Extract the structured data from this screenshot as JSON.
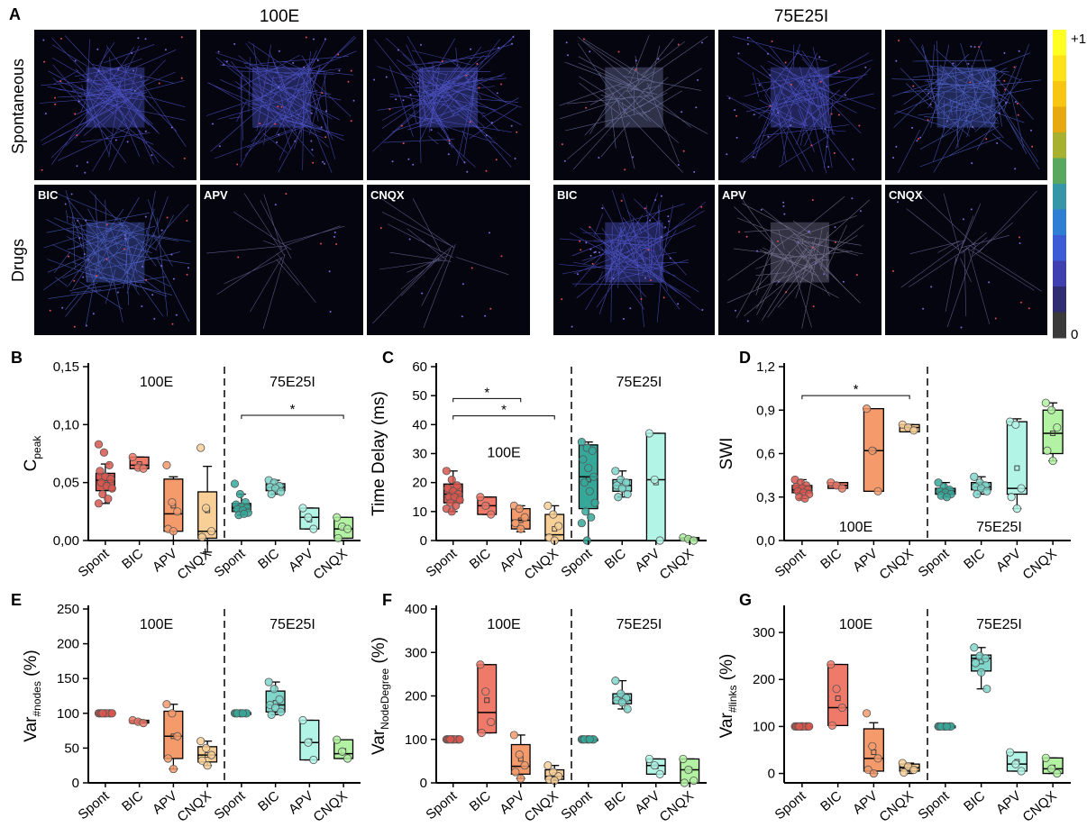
{
  "panelA": {
    "letter": "A",
    "group_titles": [
      "100E",
      "75E25I"
    ],
    "row_labels": [
      "Spontaneous",
      "Drugs"
    ],
    "drug_labels": [
      "BIC",
      "APV",
      "CNQX"
    ],
    "colorbar": {
      "max_label": "+1",
      "min_label": "0",
      "colors": [
        "#ffff22",
        "#ffe11a",
        "#f8c512",
        "#e6aa10",
        "#a8b02f",
        "#5aa85f",
        "#3596a8",
        "#2e7fd3",
        "#3c5cd6",
        "#3f3fb0",
        "#2f2c72",
        "#3a3a3a"
      ]
    },
    "thumbnails": [
      {
        "id": "sp-100E-1",
        "density": 0.9,
        "color": "#5a60e6"
      },
      {
        "id": "sp-100E-2",
        "density": 1.0,
        "color": "#5a60e6"
      },
      {
        "id": "sp-100E-3",
        "density": 1.0,
        "color": "#5a60e6"
      },
      {
        "id": "sp-75-1",
        "density": 0.5,
        "color": "#8088b8"
      },
      {
        "id": "sp-75-2",
        "density": 0.9,
        "color": "#5a60e6"
      },
      {
        "id": "sp-75-3",
        "density": 1.0,
        "color": "#5a6fe6"
      },
      {
        "id": "dr-100E-BIC",
        "density": 1.0,
        "color": "#5a70e6"
      },
      {
        "id": "dr-100E-APV",
        "density": 0.05,
        "color": "#7a7ab0"
      },
      {
        "id": "dr-100E-CNQX",
        "density": 0.05,
        "color": "#7a7ab0"
      },
      {
        "id": "dr-75-BIC",
        "density": 0.9,
        "color": "#5a60e6"
      },
      {
        "id": "dr-75-APV",
        "density": 0.6,
        "color": "#8a8aa8"
      },
      {
        "id": "dr-75-CNQX",
        "density": 0.15,
        "color": "#7a7ab0"
      }
    ]
  },
  "categories": [
    "Spont",
    "BIC",
    "APV",
    "CNQX",
    "Spont",
    "BIC",
    "APV",
    "CNQX"
  ],
  "colors": [
    "#d9574f",
    "#f07a6a",
    "#f59a6b",
    "#f8cf96",
    "#35a89a",
    "#7fd6cb",
    "#b2f5e6",
    "#b2f2a2"
  ],
  "chart_data": [
    {
      "id": "B",
      "letter": "B",
      "type": "box",
      "ylabel": "C",
      "ylabel_sub": "peak",
      "ylim": [
        0,
        0.15
      ],
      "yticks": [
        "0,00",
        "0,05",
        "0,10",
        "0,15"
      ],
      "ytick_values": [
        0,
        0.05,
        0.1,
        0.15
      ],
      "group_labels": [
        "100E",
        "75E25I"
      ],
      "boxes": [
        {
          "q1": 0.043,
          "med": 0.052,
          "q3": 0.058,
          "wlo": 0.032,
          "whi": 0.066,
          "mean": 0.05,
          "pts": [
            0.083,
            0.076,
            0.065,
            0.06,
            0.055,
            0.053,
            0.05,
            0.047,
            0.045,
            0.04,
            0.036,
            0.032
          ]
        },
        {
          "q1": 0.062,
          "med": 0.065,
          "q3": 0.072,
          "wlo": 0.062,
          "whi": 0.072,
          "mean": 0.066,
          "pts": [
            0.072,
            0.063,
            0.062
          ]
        },
        {
          "q1": 0.008,
          "med": 0.023,
          "q3": 0.053,
          "wlo": 0.0,
          "whi": 0.055,
          "mean": 0.03,
          "pts": [
            0.065,
            0.033,
            0.025,
            0.01,
            0.008
          ]
        },
        {
          "q1": 0.002,
          "med": 0.008,
          "q3": 0.042,
          "wlo": -0.01,
          "whi": 0.064,
          "mean": 0.026,
          "pts": [
            0.08,
            0.028,
            0.008,
            0.003
          ]
        },
        {
          "q1": 0.025,
          "med": 0.028,
          "q3": 0.032,
          "wlo": 0.022,
          "whi": 0.04,
          "mean": 0.029,
          "pts": [
            0.049,
            0.04,
            0.033,
            0.031,
            0.029,
            0.028,
            0.027,
            0.026,
            0.024,
            0.022,
            0.023
          ]
        },
        {
          "q1": 0.043,
          "med": 0.046,
          "q3": 0.049,
          "wlo": 0.04,
          "whi": 0.052,
          "mean": 0.046,
          "pts": [
            0.052,
            0.05,
            0.047,
            0.046,
            0.045,
            0.042,
            0.04
          ]
        },
        {
          "q1": 0.01,
          "med": 0.02,
          "q3": 0.028,
          "wlo": 0.01,
          "whi": 0.028,
          "mean": 0.018,
          "pts": [
            0.028,
            0.02,
            0.01
          ]
        },
        {
          "q1": 0.002,
          "med": 0.01,
          "q3": 0.02,
          "wlo": 0.002,
          "whi": 0.02,
          "mean": 0.011,
          "pts": [
            0.02,
            0.012,
            0.01,
            0.002
          ]
        }
      ],
      "sig": [
        {
          "from": 4,
          "to": 7,
          "y": 0.108,
          "label": "*"
        }
      ],
      "label_pos": [
        "top",
        "top"
      ]
    },
    {
      "id": "C",
      "letter": "C",
      "type": "box",
      "ylabel": "Time Delay (ms)",
      "ylabel_sub": "",
      "ylim": [
        0,
        60
      ],
      "yticks": [
        "0",
        "10",
        "20",
        "30",
        "40",
        "50",
        "60"
      ],
      "ytick_values": [
        0,
        10,
        20,
        30,
        40,
        50,
        60
      ],
      "group_labels": [
        "100E",
        "75E25I"
      ],
      "boxes": [
        {
          "q1": 13,
          "med": 16,
          "q3": 19.5,
          "wlo": 10,
          "whi": 24,
          "mean": 16,
          "pts": [
            24,
            21,
            19,
            18,
            17,
            16,
            15,
            15,
            14,
            13,
            12,
            11,
            10
          ]
        },
        {
          "q1": 9,
          "med": 12,
          "q3": 15,
          "wlo": 9,
          "whi": 15,
          "mean": 12,
          "pts": [
            15,
            12,
            9
          ]
        },
        {
          "q1": 4,
          "med": 7,
          "q3": 11,
          "wlo": 3,
          "whi": 12,
          "mean": 7,
          "pts": [
            12,
            11,
            8,
            6,
            4
          ]
        },
        {
          "q1": 0,
          "med": 2,
          "q3": 9,
          "wlo": 0,
          "whi": 12,
          "mean": 4,
          "pts": [
            12,
            9,
            5,
            1,
            0
          ]
        },
        {
          "q1": 11,
          "med": 22,
          "q3": 33,
          "wlo": 0,
          "whi": 34,
          "mean": 21,
          "pts": [
            34,
            32,
            31,
            28,
            25,
            22,
            20,
            17,
            13,
            10,
            8,
            6,
            0
          ]
        },
        {
          "q1": 17,
          "med": 19,
          "q3": 21,
          "wlo": 15,
          "whi": 24,
          "mean": 19.5,
          "pts": [
            24,
            21,
            20,
            19,
            18,
            16,
            15
          ]
        },
        {
          "q1": 0,
          "med": 21,
          "q3": 37,
          "wlo": 0,
          "whi": 37,
          "mean": 20,
          "pts": [
            37,
            21,
            0
          ]
        },
        {
          "q1": 0,
          "med": 0.5,
          "q3": 1,
          "wlo": 0,
          "whi": 1,
          "mean": 0.5,
          "pts": [
            1,
            0.5,
            0
          ]
        }
      ],
      "sig": [
        {
          "from": 0,
          "to": 2,
          "y": 49,
          "label": "*"
        },
        {
          "from": 0,
          "to": 3,
          "y": 43,
          "label": "*"
        }
      ],
      "label_pos": [
        "mid",
        "top"
      ]
    },
    {
      "id": "D",
      "letter": "D",
      "type": "box",
      "ylabel": "SWI",
      "ylabel_sub": "",
      "ylim": [
        0,
        1.2
      ],
      "yticks": [
        "0,0",
        "0,3",
        "0,6",
        "0,9",
        "1,2"
      ],
      "ytick_values": [
        0,
        0.3,
        0.6,
        0.9,
        1.2
      ],
      "group_labels": [
        "100E",
        "75E25I"
      ],
      "boxes": [
        {
          "q1": 0.33,
          "med": 0.35,
          "q3": 0.38,
          "wlo": 0.29,
          "whi": 0.42,
          "mean": 0.35,
          "pts": [
            0.42,
            0.4,
            0.38,
            0.37,
            0.36,
            0.35,
            0.34,
            0.33,
            0.32,
            0.3,
            0.29
          ]
        },
        {
          "q1": 0.36,
          "med": 0.38,
          "q3": 0.4,
          "wlo": 0.36,
          "whi": 0.4,
          "mean": 0.38,
          "pts": [
            0.4,
            0.38,
            0.36
          ]
        },
        {
          "q1": 0.34,
          "med": 0.62,
          "q3": 0.91,
          "wlo": 0.34,
          "whi": 0.91,
          "mean": 0.62,
          "pts": [
            0.91,
            0.62,
            0.34
          ]
        },
        {
          "q1": 0.75,
          "med": 0.78,
          "q3": 0.8,
          "wlo": 0.75,
          "whi": 0.8,
          "mean": 0.78,
          "pts": [
            0.8,
            0.78,
            0.76
          ]
        },
        {
          "q1": 0.32,
          "med": 0.34,
          "q3": 0.36,
          "wlo": 0.3,
          "whi": 0.4,
          "mean": 0.34,
          "pts": [
            0.4,
            0.37,
            0.35,
            0.34,
            0.33,
            0.32,
            0.31,
            0.3
          ]
        },
        {
          "q1": 0.35,
          "med": 0.37,
          "q3": 0.4,
          "wlo": 0.32,
          "whi": 0.44,
          "mean": 0.38,
          "pts": [
            0.44,
            0.4,
            0.38,
            0.37,
            0.36,
            0.34,
            0.32
          ]
        },
        {
          "q1": 0.32,
          "med": 0.36,
          "q3": 0.82,
          "wlo": 0.22,
          "whi": 0.84,
          "mean": 0.5,
          "pts": [
            0.82,
            0.8,
            0.36,
            0.3,
            0.22
          ]
        },
        {
          "q1": 0.6,
          "med": 0.74,
          "q3": 0.9,
          "wlo": 0.55,
          "whi": 0.95,
          "mean": 0.74,
          "pts": [
            0.95,
            0.9,
            0.78,
            0.62,
            0.55
          ]
        }
      ],
      "sig": [
        {
          "from": 0,
          "to": 3,
          "y": 1.0,
          "label": "*"
        }
      ],
      "label_pos": [
        "bottom",
        "bottom"
      ]
    },
    {
      "id": "E",
      "letter": "E",
      "type": "box",
      "ylabel": "Var",
      "ylabel_sub": "#nodes",
      "ylabel_suffix": " (%)",
      "ylim": [
        0,
        250
      ],
      "yticks": [
        "0",
        "50",
        "100",
        "150",
        "200",
        "250"
      ],
      "ytick_values": [
        0,
        50,
        100,
        150,
        200,
        250
      ],
      "group_labels": [
        "100E",
        "75E25I"
      ],
      "boxes": [
        {
          "q1": 99,
          "med": 100,
          "q3": 101,
          "wlo": 99,
          "whi": 101,
          "mean": 100,
          "pts": [
            100,
            100,
            100,
            100,
            100,
            100,
            100,
            100,
            100,
            100
          ]
        },
        {
          "q1": 86,
          "med": 88,
          "q3": 90,
          "wlo": 86,
          "whi": 90,
          "mean": 88,
          "pts": [
            90,
            88,
            86
          ]
        },
        {
          "q1": 35,
          "med": 67,
          "q3": 103,
          "wlo": 20,
          "whi": 113,
          "mean": 67,
          "pts": [
            113,
            100,
            67,
            35,
            20
          ]
        },
        {
          "q1": 30,
          "med": 40,
          "q3": 52,
          "wlo": 25,
          "whi": 60,
          "mean": 40,
          "pts": [
            60,
            50,
            40,
            32,
            25
          ]
        },
        {
          "q1": 99,
          "med": 100,
          "q3": 101,
          "wlo": 99,
          "whi": 101,
          "mean": 100,
          "pts": [
            100,
            100,
            100,
            100,
            100,
            100,
            100,
            100
          ]
        },
        {
          "q1": 102,
          "med": 112,
          "q3": 132,
          "wlo": 98,
          "whi": 145,
          "mean": 115,
          "pts": [
            145,
            135,
            120,
            112,
            108,
            102,
            98
          ]
        },
        {
          "q1": 33,
          "med": 58,
          "q3": 90,
          "wlo": 33,
          "whi": 90,
          "mean": 60,
          "pts": [
            90,
            58,
            33
          ]
        },
        {
          "q1": 35,
          "med": 42,
          "q3": 62,
          "wlo": 35,
          "whi": 62,
          "mean": 46,
          "pts": [
            62,
            45,
            35
          ]
        }
      ],
      "sig": [],
      "label_pos": [
        "top",
        "top"
      ]
    },
    {
      "id": "F",
      "letter": "F",
      "type": "box",
      "ylabel": "Var",
      "ylabel_sub": "NodeDegree",
      "ylabel_suffix": " (%)",
      "ylim": [
        0,
        400
      ],
      "yticks": [
        "0",
        "100",
        "200",
        "300",
        "400"
      ],
      "ytick_values": [
        0,
        100,
        200,
        300,
        400
      ],
      "group_labels": [
        "100E",
        "75E25I"
      ],
      "boxes": [
        {
          "q1": 99,
          "med": 100,
          "q3": 101,
          "wlo": 99,
          "whi": 101,
          "mean": 100,
          "pts": [
            100,
            100,
            100,
            100,
            100,
            100,
            100,
            100,
            100,
            100
          ]
        },
        {
          "q1": 115,
          "med": 162,
          "q3": 272,
          "wlo": 115,
          "whi": 272,
          "mean": 190,
          "pts": [
            272,
            210,
            140,
            115
          ]
        },
        {
          "q1": 20,
          "med": 38,
          "q3": 88,
          "wlo": 10,
          "whi": 110,
          "mean": 55,
          "pts": [
            110,
            65,
            40,
            25,
            10
          ]
        },
        {
          "q1": 8,
          "med": 15,
          "q3": 30,
          "wlo": 5,
          "whi": 40,
          "mean": 18,
          "pts": [
            40,
            25,
            15,
            8,
            5
          ]
        },
        {
          "q1": 99,
          "med": 100,
          "q3": 101,
          "wlo": 99,
          "whi": 101,
          "mean": 100,
          "pts": [
            100,
            100,
            100,
            100,
            100,
            100,
            100,
            100
          ]
        },
        {
          "q1": 182,
          "med": 190,
          "q3": 205,
          "wlo": 170,
          "whi": 235,
          "mean": 195,
          "pts": [
            235,
            205,
            195,
            190,
            185,
            170
          ]
        },
        {
          "q1": 20,
          "med": 40,
          "q3": 55,
          "wlo": 20,
          "whi": 55,
          "mean": 38,
          "pts": [
            55,
            40,
            20
          ]
        },
        {
          "q1": 0,
          "med": 30,
          "q3": 55,
          "wlo": 0,
          "whi": 55,
          "mean": 30,
          "pts": [
            55,
            30,
            5,
            0
          ]
        }
      ],
      "sig": [],
      "label_pos": [
        "top",
        "top"
      ]
    },
    {
      "id": "G",
      "letter": "G",
      "type": "box",
      "ylabel": "Var",
      "ylabel_sub": "#links",
      "ylabel_suffix": " (%)",
      "ylim": [
        -20,
        350
      ],
      "yticks": [
        "0",
        "100",
        "200",
        "300"
      ],
      "ytick_values": [
        0,
        100,
        200,
        300
      ],
      "group_labels": [
        "100E",
        "75E25I"
      ],
      "boxes": [
        {
          "q1": 99,
          "med": 100,
          "q3": 101,
          "wlo": 99,
          "whi": 101,
          "mean": 100,
          "pts": [
            100,
            100,
            100,
            100,
            100,
            100,
            100,
            100,
            100,
            100
          ]
        },
        {
          "q1": 102,
          "med": 140,
          "q3": 232,
          "wlo": 102,
          "whi": 232,
          "mean": 160,
          "pts": [
            232,
            180,
            140,
            102
          ]
        },
        {
          "q1": 5,
          "med": 32,
          "q3": 95,
          "wlo": 0,
          "whi": 108,
          "mean": 45,
          "pts": [
            128,
            58,
            32,
            8,
            0
          ]
        },
        {
          "q1": 5,
          "med": 12,
          "q3": 20,
          "wlo": 0,
          "whi": 22,
          "mean": 12,
          "pts": [
            22,
            15,
            8,
            2
          ]
        },
        {
          "q1": 99,
          "med": 100,
          "q3": 101,
          "wlo": 99,
          "whi": 101,
          "mean": 100,
          "pts": [
            100,
            100,
            100,
            100,
            100,
            100,
            100,
            100
          ]
        },
        {
          "q1": 218,
          "med": 245,
          "q3": 252,
          "wlo": 180,
          "whi": 268,
          "mean": 238,
          "pts": [
            268,
            250,
            245,
            235,
            215,
            180
          ]
        },
        {
          "q1": 5,
          "med": 20,
          "q3": 45,
          "wlo": 5,
          "whi": 45,
          "mean": 25,
          "pts": [
            45,
            20,
            5
          ]
        },
        {
          "q1": 0,
          "med": 10,
          "q3": 33,
          "wlo": 0,
          "whi": 33,
          "mean": 13,
          "pts": [
            33,
            10,
            0
          ]
        }
      ],
      "sig": [],
      "label_pos": [
        "top",
        "top"
      ]
    }
  ]
}
